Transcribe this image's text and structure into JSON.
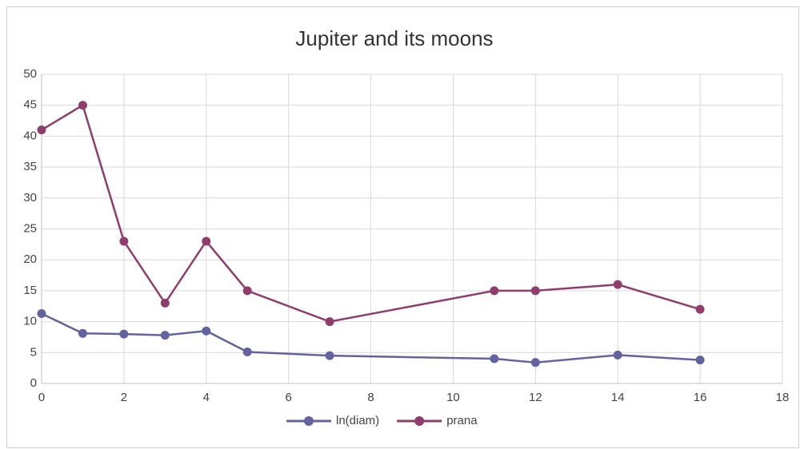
{
  "chart_data": {
    "type": "line",
    "title": "Jupiter and its moons",
    "x": [
      0,
      1,
      2,
      3,
      4,
      5,
      7,
      11,
      12,
      14,
      16
    ],
    "series": [
      {
        "name": "ln(diam)",
        "color": "#62639f",
        "values": [
          11.3,
          8.1,
          8.0,
          7.8,
          8.5,
          5.1,
          4.5,
          4.0,
          3.4,
          4.6,
          3.8
        ]
      },
      {
        "name": "prana",
        "color": "#913d6b",
        "values": [
          41,
          45,
          23,
          13,
          23,
          15,
          10,
          15,
          15,
          16,
          12
        ]
      }
    ],
    "xlim": [
      0,
      18
    ],
    "xticks": [
      0,
      2,
      4,
      6,
      8,
      10,
      12,
      14,
      16,
      18
    ],
    "ylim": [
      0,
      50
    ],
    "yticks": [
      0,
      5,
      10,
      15,
      20,
      25,
      30,
      35,
      40,
      45,
      50
    ],
    "grid": true,
    "legend": "bottom"
  }
}
